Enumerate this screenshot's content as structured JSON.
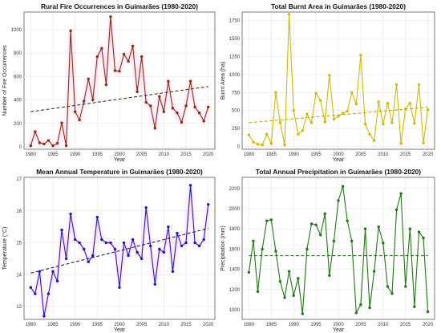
{
  "chart_data": [
    {
      "type": "line",
      "title": "Rural Fire Occurrences in Guimarães (1980-2020)",
      "xlabel": "Year",
      "ylabel": "Number of Fire Occurrences",
      "xlim": [
        1978.5,
        2021.5
      ],
      "ylim": [
        -20,
        1150
      ],
      "xticks": [
        1980,
        1985,
        1990,
        1995,
        2000,
        2005,
        2010,
        2015,
        2020
      ],
      "yticks": [
        0,
        200,
        400,
        600,
        800,
        1000
      ],
      "grid": true,
      "color": "#8b2d10",
      "trend_color": "#5a2a1a",
      "glow_color": "#ff66cc",
      "x": [
        1980,
        1981,
        1982,
        1983,
        1984,
        1985,
        1986,
        1987,
        1988,
        1989,
        1990,
        1991,
        1992,
        1993,
        1994,
        1995,
        1996,
        1997,
        1998,
        1999,
        2000,
        2001,
        2002,
        2003,
        2004,
        2005,
        2006,
        2007,
        2008,
        2009,
        2010,
        2011,
        2012,
        2013,
        2014,
        2015,
        2016,
        2017,
        2018,
        2019,
        2020
      ],
      "series": [
        {
          "values": [
            10,
            130,
            35,
            25,
            55,
            10,
            30,
            205,
            10,
            990,
            300,
            230,
            390,
            580,
            400,
            770,
            840,
            530,
            1110,
            650,
            645,
            790,
            730,
            860,
            470,
            770,
            380,
            350,
            160,
            430,
            300,
            560,
            330,
            290,
            210,
            350,
            560,
            340,
            290,
            220,
            340
          ]
        }
      ],
      "trend": [
        300,
        515
      ]
    },
    {
      "type": "line",
      "title": "Total Burnt Area in Guimarães (1980-2020)",
      "xlabel": "Year",
      "ylabel": "Burnt Area (ha)",
      "xlim": [
        1978.5,
        2021.5
      ],
      "ylim": [
        -40,
        1870
      ],
      "xticks": [
        1980,
        1985,
        1990,
        1995,
        2000,
        2005,
        2010,
        2015,
        2020
      ],
      "yticks": [
        0,
        250,
        500,
        750,
        1000,
        1250,
        1500,
        1750
      ],
      "grid": true,
      "color": "#d4b800",
      "trend_color": "#c9a800",
      "x": [
        1980,
        1981,
        1982,
        1983,
        1984,
        1985,
        1986,
        1987,
        1988,
        1989,
        1990,
        1991,
        1992,
        1993,
        1994,
        1995,
        1996,
        1997,
        1998,
        1999,
        2000,
        2001,
        2002,
        2003,
        2004,
        2005,
        2006,
        2007,
        2008,
        2009,
        2010,
        2011,
        2012,
        2013,
        2014,
        2015,
        2016,
        2017,
        2018,
        2019,
        2020
      ],
      "series": [
        {
          "values": [
            160,
            60,
            30,
            20,
            170,
            40,
            750,
            330,
            20,
            1840,
            500,
            170,
            220,
            450,
            330,
            740,
            640,
            340,
            990,
            380,
            420,
            460,
            490,
            750,
            590,
            1270,
            310,
            170,
            80,
            620,
            310,
            600,
            330,
            860,
            40,
            520,
            600,
            320,
            860,
            50,
            510
          ]
        }
      ],
      "trend": [
        330,
        545
      ]
    },
    {
      "type": "line",
      "title": "Mean Annual Temperature in Guimarães (1980-2020)",
      "xlabel": "Year",
      "ylabel": "Temperature (°C)",
      "xlim": [
        1978.5,
        2021.5
      ],
      "ylim": [
        12.6,
        17.05
      ],
      "xticks": [
        1980,
        1985,
        1990,
        1995,
        2000,
        2005,
        2010,
        2015,
        2020
      ],
      "yticks": [
        13,
        14,
        15,
        16,
        17
      ],
      "grid": true,
      "color": "#1a1ac8",
      "trend_color": "#1a1a70",
      "glow_color": "#ff66cc",
      "x": [
        1980,
        1981,
        1982,
        1983,
        1984,
        1985,
        1986,
        1987,
        1988,
        1989,
        1990,
        1991,
        1992,
        1993,
        1994,
        1995,
        1996,
        1997,
        1998,
        1999,
        2000,
        2001,
        2002,
        2003,
        2004,
        2005,
        2006,
        2007,
        2008,
        2009,
        2010,
        2011,
        2012,
        2013,
        2014,
        2015,
        2016,
        2017,
        2018,
        2019,
        2020
      ],
      "series": [
        {
          "values": [
            13.6,
            13.4,
            14.1,
            12.7,
            13.4,
            14.1,
            13.8,
            15.4,
            14.5,
            15.9,
            15.1,
            15.0,
            14.8,
            14.4,
            14.6,
            15.8,
            15.1,
            15.0,
            15.0,
            14.8,
            13.6,
            15.0,
            14.6,
            15.1,
            14.7,
            14.5,
            16.1,
            14.9,
            13.7,
            14.8,
            14.7,
            15.5,
            14.1,
            15.3,
            14.9,
            15.0,
            16.8,
            15.0,
            14.9,
            15.1,
            16.2
          ]
        }
      ],
      "trend": [
        14.05,
        15.45
      ]
    },
    {
      "type": "line",
      "title": "Total Annual Precipitation in Guimarães (1980-2020)",
      "xlabel": "Year",
      "ylabel": "Precipitation (mm)",
      "xlim": [
        1978.5,
        2021.5
      ],
      "ylim": [
        905,
        2310
      ],
      "xticks": [
        1980,
        1985,
        1990,
        1995,
        2000,
        2005,
        2010,
        2015,
        2020
      ],
      "yticks": [
        1000,
        1200,
        1400,
        1600,
        1800,
        2000,
        2200
      ],
      "grid": true,
      "color": "#1d7a10",
      "trend_color": "#1d6a10",
      "x": [
        1980,
        1981,
        1982,
        1983,
        1984,
        1985,
        1986,
        1987,
        1988,
        1989,
        1990,
        1991,
        1992,
        1993,
        1994,
        1995,
        1996,
        1997,
        1998,
        1999,
        2000,
        2001,
        2002,
        2003,
        2004,
        2005,
        2006,
        2007,
        2008,
        2009,
        2010,
        2011,
        2012,
        2013,
        2014,
        2015,
        2016,
        2017,
        2018,
        2019,
        2020
      ],
      "series": [
        {
          "values": [
            1370,
            1680,
            1180,
            1600,
            1880,
            1890,
            1580,
            1280,
            1120,
            1380,
            1140,
            1310,
            960,
            1600,
            1850,
            1840,
            1740,
            1950,
            1340,
            1680,
            2080,
            2220,
            1880,
            1680,
            970,
            1050,
            1800,
            1020,
            1380,
            1820,
            1660,
            1230,
            1160,
            1990,
            2150,
            1230,
            1800,
            1030,
            1770,
            1710,
            980
          ]
        }
      ],
      "trend": [
        1535,
        1535
      ]
    }
  ]
}
